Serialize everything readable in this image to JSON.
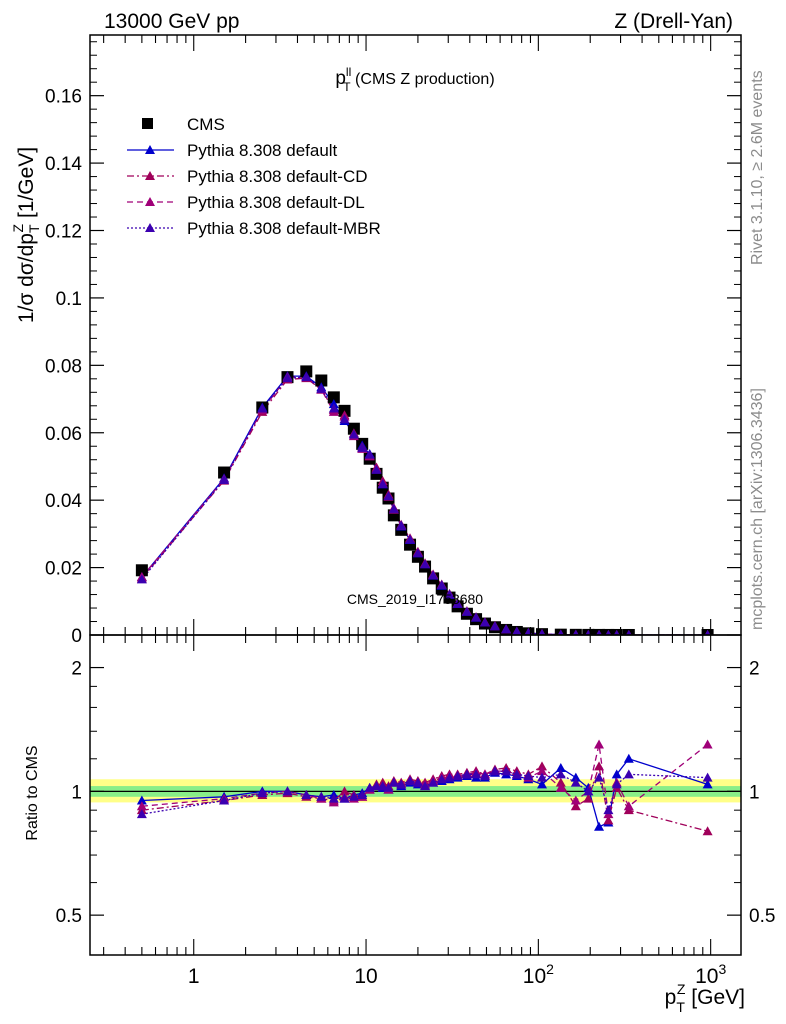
{
  "header": {
    "left": "13000 GeV pp",
    "right": "Z (Drell-Yan)"
  },
  "side_notes": {
    "rivet": "Rivet 3.1.10, ≥ 2.6M events",
    "source": "mcplots.cern.ch [arXiv:1306.3436]"
  },
  "watermark": "CMS_2019_I1753680",
  "plot_title": {
    "base": "p",
    "sup": "ll",
    "sub": "T",
    "rest": " (CMS Z production)"
  },
  "colors": {
    "cms": "#000000",
    "default": "#0000cc",
    "cd": "#a0005a",
    "dl": "#a00078",
    "mbr": "#3b00b0",
    "band_yellow": "#ffff88",
    "band_green": "#88ee88"
  },
  "chart_data": [
    {
      "type": "line",
      "panel": "main",
      "title": "",
      "ylabel": {
        "main": "1/σ dσ/dp",
        "sub": "T",
        "sup": "Z",
        "unit": " [1/GeV]"
      },
      "xscale": "log",
      "xlim": [
        0.25,
        1500
      ],
      "ylim": [
        0,
        0.178
      ],
      "yticks": [
        0,
        0.02,
        0.04,
        0.06,
        0.08,
        0.1,
        0.12,
        0.14,
        0.16
      ],
      "ytick_labels": [
        "0",
        "0.02",
        "0.04",
        "0.06",
        "0.08",
        "0.1",
        "0.12",
        "0.14",
        "0.16"
      ],
      "legend": {
        "placement": "top-left",
        "entries": [
          "CMS",
          "Pythia 8.308 default",
          "Pythia 8.308 default-CD",
          "Pythia 8.308 default-DL",
          "Pythia 8.308 default-MBR"
        ]
      },
      "x": [
        0.5,
        1.5,
        2.5,
        3.5,
        4.5,
        5.5,
        6.5,
        7.5,
        8.5,
        9.5,
        10.5,
        11.5,
        12.5,
        13.5,
        14.5,
        16,
        18,
        20,
        22,
        24.5,
        27.5,
        30.5,
        34,
        38.5,
        43.5,
        49,
        56,
        65,
        75,
        87.5,
        105,
        135,
        165,
        195,
        225,
        255,
        285,
        335,
        960
      ],
      "series": [
        {
          "name": "CMS",
          "marker": "square",
          "values": [
            0.0192,
            0.0482,
            0.0675,
            0.0765,
            0.0782,
            0.0755,
            0.0705,
            0.0665,
            0.0612,
            0.0567,
            0.0523,
            0.0478,
            0.0437,
            0.0405,
            0.0355,
            0.0312,
            0.0268,
            0.0232,
            0.0203,
            0.0168,
            0.0138,
            0.0111,
            0.0085,
            0.0063,
            0.0047,
            0.0034,
            0.0023,
            0.0015,
            0.0009,
            0.0005,
            0.00025,
            0.0001,
            5e-05,
            3e-05,
            2e-05,
            1.5e-05,
            1e-05,
            6e-06,
            4e-07
          ]
        },
        {
          "name": "Pythia 8.308 default",
          "marker": "triangle",
          "dash": "",
          "values": [
            0.0172,
            0.0465,
            0.0675,
            0.0768,
            0.0768,
            0.0735,
            0.0685,
            0.0635,
            0.0598,
            0.0562,
            0.0537,
            0.0492,
            0.0447,
            0.0412,
            0.0372,
            0.0322,
            0.0282,
            0.0242,
            0.021,
            0.0176,
            0.0146,
            0.0119,
            0.0092,
            0.0069,
            0.0051,
            0.0037,
            0.0026,
            0.0017,
            0.001,
            0.0006,
            0.00028,
            0.00012,
            6e-05,
            3e-05,
            2e-05,
            1.6e-05,
            1.1e-05,
            7e-06,
            4e-07
          ]
        },
        {
          "name": "Pythia 8.308 default-CD",
          "marker": "triangle",
          "dash": "7,3,2,3",
          "values": [
            0.0168,
            0.0458,
            0.0662,
            0.0758,
            0.0762,
            0.0728,
            0.0668,
            0.0652,
            0.0598,
            0.0557,
            0.0532,
            0.0497,
            0.0457,
            0.0417,
            0.0377,
            0.0327,
            0.0287,
            0.0247,
            0.0213,
            0.018,
            0.015,
            0.0122,
            0.0094,
            0.0071,
            0.0053,
            0.0038,
            0.0027,
            0.0017,
            0.001,
            0.0006,
            0.00028,
            0.00012,
            6e-05,
            3e-05,
            2e-05,
            1.6e-05,
            1.1e-05,
            7e-06,
            4e-07
          ]
        },
        {
          "name": "Pythia 8.308 default-DL",
          "marker": "triangle",
          "dash": "6,4",
          "values": [
            0.0172,
            0.0462,
            0.0668,
            0.0765,
            0.0765,
            0.0728,
            0.0662,
            0.0648,
            0.059,
            0.0552,
            0.053,
            0.0492,
            0.045,
            0.041,
            0.0372,
            0.0324,
            0.0284,
            0.0244,
            0.0211,
            0.0178,
            0.0149,
            0.0121,
            0.0093,
            0.007,
            0.0052,
            0.0038,
            0.0026,
            0.0017,
            0.001,
            0.0006,
            0.00028,
            0.00012,
            6e-05,
            3e-05,
            2e-05,
            1.6e-05,
            1.1e-05,
            7e-06,
            4e-07
          ]
        },
        {
          "name": "Pythia 8.308 default-MBR",
          "marker": "triangle",
          "dash": "2,2",
          "values": [
            0.0165,
            0.046,
            0.0672,
            0.0762,
            0.0765,
            0.073,
            0.0672,
            0.064,
            0.0595,
            0.0555,
            0.0535,
            0.049,
            0.0448,
            0.0412,
            0.0374,
            0.0325,
            0.0283,
            0.0243,
            0.021,
            0.0177,
            0.0148,
            0.012,
            0.0093,
            0.0069,
            0.0052,
            0.0037,
            0.0026,
            0.0017,
            0.001,
            0.0006,
            0.00028,
            0.00012,
            6e-05,
            3e-05,
            2e-05,
            1.6e-05,
            1.1e-05,
            7e-06,
            4e-07
          ]
        }
      ]
    },
    {
      "type": "line",
      "panel": "ratio",
      "ylabel": "Ratio to CMS",
      "xlabel": {
        "main": "p",
        "sub": "T",
        "sup": "Z",
        "unit": " [GeV]"
      },
      "xscale": "log",
      "yscale": "log",
      "xlim": [
        0.25,
        1500
      ],
      "ylim": [
        0.4,
        2.4
      ],
      "xticks": [
        1,
        10,
        100,
        1000
      ],
      "xtick_labels": [
        {
          "base": "1",
          "sup": ""
        },
        {
          "base": "10",
          "sup": ""
        },
        {
          "base": "10",
          "sup": "2"
        },
        {
          "base": "10",
          "sup": "3"
        }
      ],
      "yticks": [
        0.5,
        1,
        2
      ],
      "ytick_labels": [
        "0.5",
        "1",
        "2"
      ],
      "bands": {
        "green": [
          0.97,
          1.03
        ],
        "yellow": [
          0.94,
          1.07
        ]
      },
      "series": [
        {
          "name": "Pythia 8.308 default",
          "values": [
            0.95,
            0.97,
            1.0,
            1.0,
            0.98,
            0.97,
            0.98,
            0.96,
            0.98,
            0.99,
            1.02,
            1.03,
            1.02,
            1.01,
            1.05,
            1.03,
            1.05,
            1.04,
            1.03,
            1.05,
            1.06,
            1.07,
            1.08,
            1.09,
            1.08,
            1.08,
            1.11,
            1.1,
            1.09,
            1.07,
            1.04,
            1.14,
            1.08,
            1.02,
            0.82,
            0.84,
            1.1,
            1.2,
            1.04
          ]
        },
        {
          "name": "Pythia 8.308 default-CD",
          "values": [
            0.9,
            0.95,
            0.98,
            0.99,
            0.97,
            0.96,
            0.95,
            1.0,
            0.98,
            0.97,
            1.01,
            1.04,
            1.05,
            1.03,
            1.06,
            1.05,
            1.07,
            1.06,
            1.05,
            1.07,
            1.09,
            1.1,
            1.1,
            1.11,
            1.12,
            1.1,
            1.13,
            1.14,
            1.12,
            1.1,
            1.15,
            1.05,
            0.92,
            0.96,
            1.15,
            0.85,
            1.02,
            0.9,
            0.8
          ]
        },
        {
          "name": "Pythia 8.308 default-DL",
          "values": [
            0.92,
            0.96,
            0.99,
            1.0,
            0.98,
            0.96,
            0.94,
            0.97,
            0.96,
            0.97,
            1.01,
            1.03,
            1.03,
            1.01,
            1.05,
            1.04,
            1.06,
            1.05,
            1.04,
            1.06,
            1.08,
            1.09,
            1.09,
            1.1,
            1.11,
            1.1,
            1.12,
            1.12,
            1.1,
            1.08,
            1.12,
            1.02,
            0.95,
            1.0,
            1.3,
            0.88,
            1.05,
            0.92,
            1.3
          ]
        },
        {
          "name": "Pythia 8.308 default-MBR",
          "values": [
            0.88,
            0.95,
            0.99,
            1.0,
            0.98,
            0.97,
            0.96,
            0.96,
            0.97,
            0.98,
            1.02,
            1.03,
            1.03,
            1.02,
            1.05,
            1.04,
            1.06,
            1.05,
            1.03,
            1.05,
            1.07,
            1.08,
            1.09,
            1.1,
            1.1,
            1.09,
            1.12,
            1.12,
            1.1,
            1.09,
            1.08,
            1.1,
            1.05,
            1.0,
            1.08,
            0.9,
            1.04,
            1.1,
            1.08
          ]
        }
      ]
    }
  ]
}
